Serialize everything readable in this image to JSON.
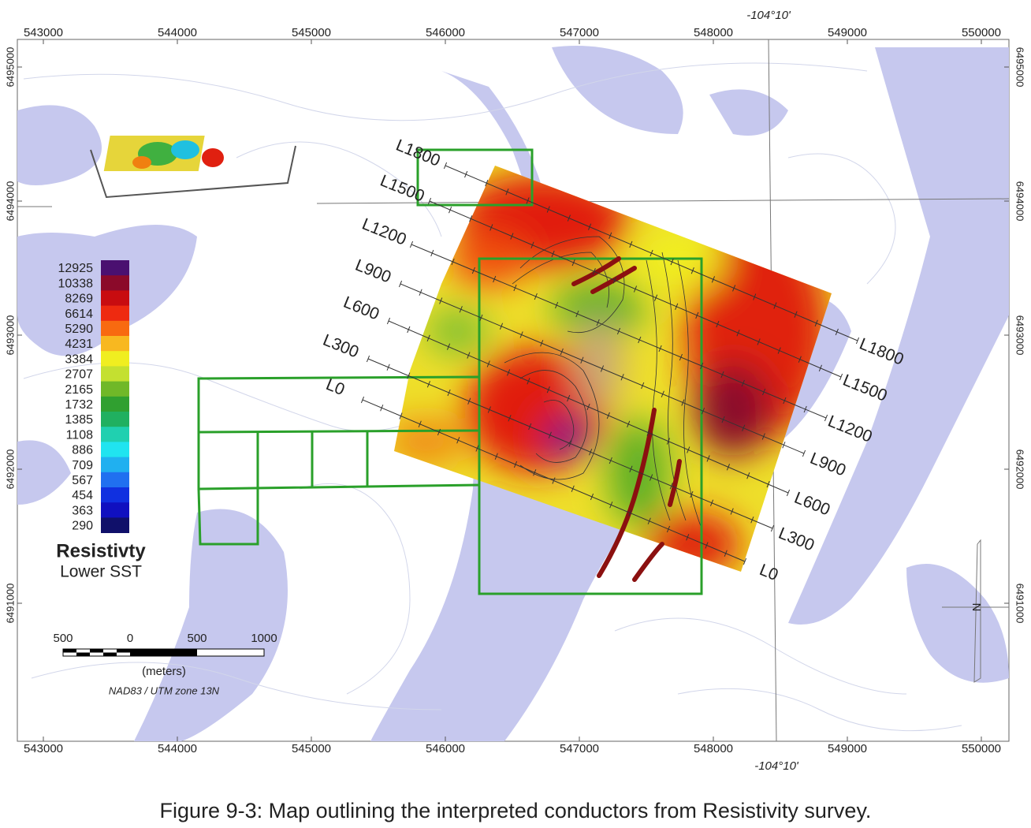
{
  "map": {
    "x_ticks": [
      543000,
      544000,
      545000,
      546000,
      547000,
      548000,
      549000,
      550000
    ],
    "y_ticks": [
      6495000,
      6494000,
      6493000,
      6492000,
      6491000
    ],
    "longitude_label": "-104°10'",
    "survey_lines": [
      "L0",
      "L300",
      "L600",
      "L900",
      "L1200",
      "L1500",
      "L1800"
    ],
    "legend": {
      "values": [
        12925,
        10338,
        8269,
        6614,
        5290,
        4231,
        3384,
        2707,
        2165,
        1732,
        1385,
        1108,
        886,
        709,
        567,
        454,
        363,
        290
      ],
      "colors": [
        "#4a1070",
        "#8b0a2a",
        "#c80c10",
        "#ee2a10",
        "#f86a10",
        "#f8b820",
        "#f0ee20",
        "#c4e030",
        "#70b828",
        "#30a030",
        "#20b060",
        "#20d0b0",
        "#20e4f0",
        "#20b0f0",
        "#2070f0",
        "#1030e0",
        "#1010c0",
        "#10106a"
      ],
      "title": "Resistivty",
      "subtitle": "Lower SST"
    },
    "scale_bar": {
      "ticks": [
        {
          "value": -500,
          "label": "500"
        },
        0,
        500,
        1000
      ],
      "unit": "(meters)",
      "datum": "NAD83 / UTM zone 13N"
    }
  },
  "caption": "Figure 9-3: Map outlining the interpreted conductors from Resistivity survey."
}
